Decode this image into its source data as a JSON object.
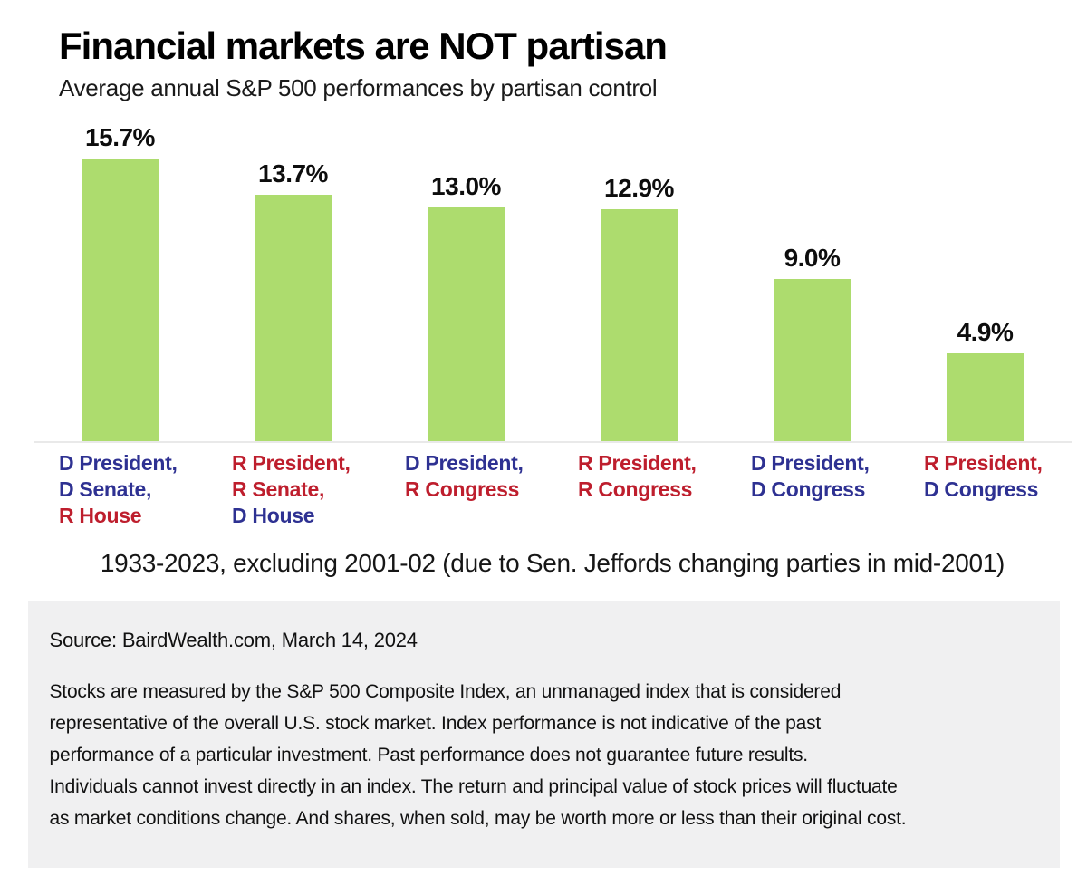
{
  "chart_data": {
    "type": "bar",
    "title": "Financial markets are NOT partisan",
    "subtitle": "Average annual S&P 500 performances by partisan control",
    "categories": [
      "D President, D Senate, R House",
      "R President, R Senate, D House",
      "D President, R Congress",
      "R President, R Congress",
      "D President, D Congress",
      "R President, D Congress"
    ],
    "values": [
      15.7,
      13.7,
      13.0,
      12.9,
      9.0,
      4.9
    ],
    "bar_color": "#addc6e",
    "ylim": [
      0,
      16.5
    ],
    "grid": false,
    "legend": "none",
    "party_colors": {
      "D": "#2e3192",
      "R": "#be1e2d"
    },
    "bars": [
      {
        "value": 15.7,
        "label": "15.7%",
        "lines": [
          {
            "text": "D President,",
            "party": "D"
          },
          {
            "text": "D Senate,",
            "party": "D"
          },
          {
            "text": "R House",
            "party": "R"
          }
        ]
      },
      {
        "value": 13.7,
        "label": "13.7%",
        "lines": [
          {
            "text": "R President,",
            "party": "R"
          },
          {
            "text": "R Senate,",
            "party": "R"
          },
          {
            "text": "D House",
            "party": "D"
          }
        ]
      },
      {
        "value": 13.0,
        "label": "13.0%",
        "lines": [
          {
            "text": "D President,",
            "party": "D"
          },
          {
            "text": "R Congress",
            "party": "R"
          }
        ]
      },
      {
        "value": 12.9,
        "label": "12.9%",
        "lines": [
          {
            "text": "R President,",
            "party": "R"
          },
          {
            "text": "R Congress",
            "party": "R"
          }
        ]
      },
      {
        "value": 9.0,
        "label": "9.0%",
        "lines": [
          {
            "text": "D President,",
            "party": "D"
          },
          {
            "text": "D Congress",
            "party": "D"
          }
        ]
      },
      {
        "value": 4.9,
        "label": "4.9%",
        "lines": [
          {
            "text": "R President,",
            "party": "R"
          },
          {
            "text": "D Congress",
            "party": "D"
          }
        ]
      }
    ],
    "note": "1933-2023, excluding 2001-02 (due to Sen. Jeffords changing parties in mid-2001)"
  },
  "footer": {
    "source": "Source: BairdWealth.com, March 14, 2024",
    "disclaimer_lines": [
      "Stocks are measured by the S&P 500 Composite Index, an unmanaged index that is considered",
      "representative of the overall U.S. stock market. Index performance is not indicative of the past",
      "performance of a particular investment. Past performance does not guarantee future results.",
      "Individuals cannot invest directly in an index. The return and principal value of stock prices will fluctuate",
      "as market conditions change. And shares, when sold, may be worth more or less than their original cost."
    ]
  }
}
